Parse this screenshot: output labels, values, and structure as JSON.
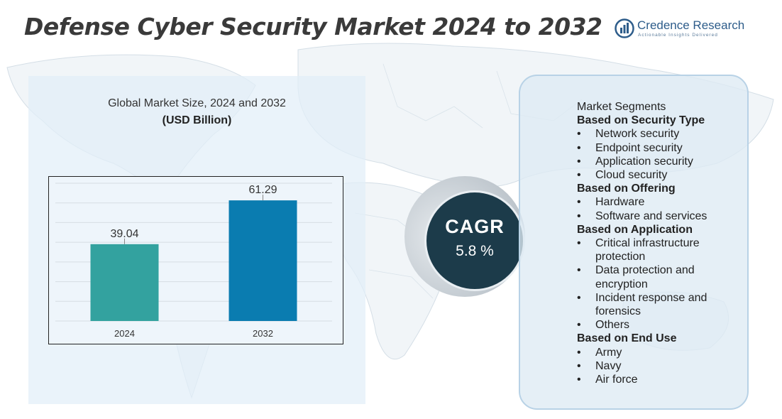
{
  "title": "Defense Cyber Security Market 2024 to 2032",
  "logo": {
    "name": "Credence Research",
    "tagline": "Actionable Insights Delivered",
    "icon": "bar-chart-circle-icon"
  },
  "chart_panel": {
    "heading": "Global Market Size,  2024 and 2032",
    "unit": "(USD Billion)"
  },
  "chart_data": {
    "type": "bar",
    "categories": [
      "2024",
      "2032"
    ],
    "values": [
      39.04,
      61.29
    ],
    "value_labels": [
      "39.04",
      "61.29"
    ],
    "colors": [
      "#33a29f",
      "#0a7cb0"
    ],
    "ylim": [
      0,
      70
    ],
    "grid": true,
    "title": "Global Market Size,  2024 and 2032",
    "ylabel": "(USD Billion)"
  },
  "cagr": {
    "label": "CAGR",
    "value": "5.8 %"
  },
  "segments": {
    "title": "Market Segments",
    "groups": [
      {
        "title": "Based on Security Type",
        "items": [
          "Network security",
          "Endpoint security",
          "Application security",
          "Cloud security"
        ]
      },
      {
        "title": "Based on Offering",
        "items": [
          "Hardware",
          "Software and services"
        ]
      },
      {
        "title": "Based on Application",
        "items": [
          "Critical infrastructure protection",
          "Data protection and encryption",
          "Incident response and forensics",
          "Others"
        ]
      },
      {
        "title": "Based on End Use",
        "items": [
          "Army",
          "Navy",
          "Air force"
        ]
      }
    ]
  },
  "colors": {
    "title_text": "#3a3a3a",
    "cagr_circle": "#1c3b4a",
    "panel_bg": "#e2eef8",
    "logo_blue": "#2d5c8a"
  }
}
